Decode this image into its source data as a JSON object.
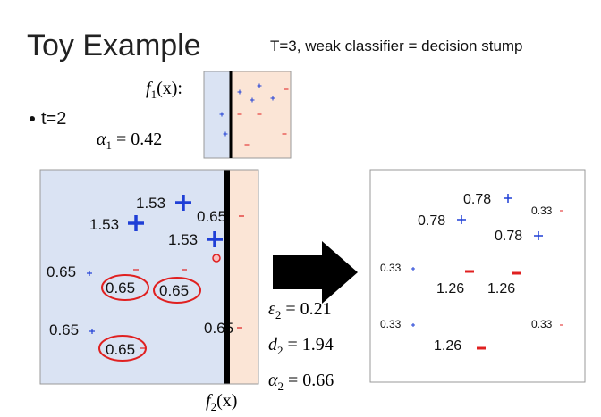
{
  "header": {
    "title": "Toy Example",
    "subtitle": "T=3, weak classifier = decision stump"
  },
  "bullet": "t=2",
  "f1_label": {
    "base": "f",
    "sub": "1",
    "rest": "(x):"
  },
  "alpha1": {
    "base": "α",
    "sub": "1",
    "rest": " = 0.42"
  },
  "left_weights": [
    "1.53",
    "1.53",
    "1.53",
    "0.65",
    "0.65",
    "0.65",
    "0.65",
    "0.65",
    "0.65",
    "0.65"
  ],
  "epsilon2": {
    "base": "ε",
    "sub": "2",
    "rest": " = 0.21"
  },
  "d2": {
    "base": "d",
    "sub": "2",
    "rest": " = 1.94"
  },
  "alpha2": {
    "base": "α",
    "sub": "2",
    "rest": " = 0.66"
  },
  "f2_label": {
    "base": "f",
    "sub": "2",
    "rest": "(x)"
  },
  "right_weights": [
    "0.78",
    "0.33",
    "0.78",
    "0.78",
    "0.33",
    "1.26",
    "1.26",
    "0.33",
    "0.33",
    "1.26"
  ]
}
